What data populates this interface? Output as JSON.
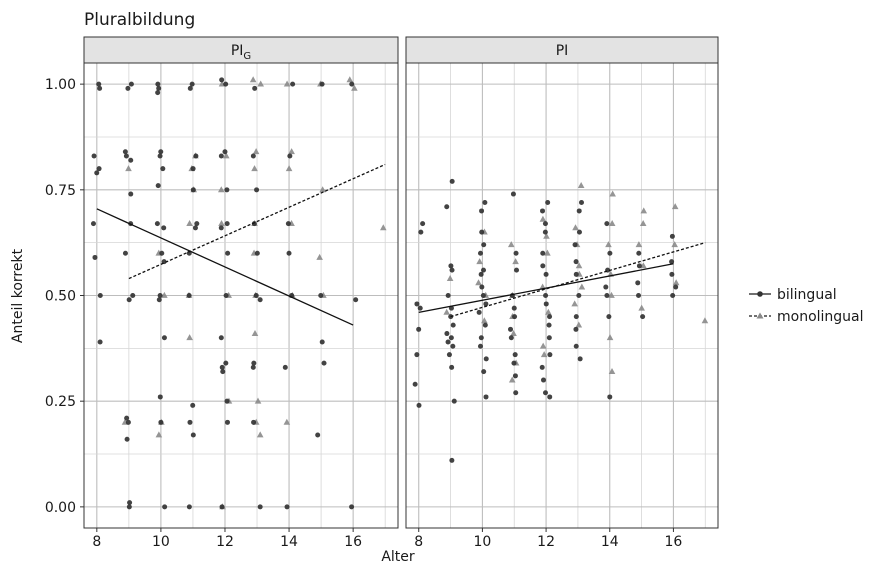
{
  "chart_data": {
    "type": "scatter",
    "title": "Pluralbildung",
    "xlabel": "Alter",
    "ylabel": "Anteil korrekt",
    "xlim": [
      7.6,
      17.4
    ],
    "ylim": [
      -0.05,
      1.05
    ],
    "xticks": [
      8,
      10,
      12,
      14,
      16
    ],
    "yticks": [
      0.0,
      0.25,
      0.5,
      0.75,
      1.0
    ],
    "ytick_labels": [
      "0.00",
      "0.25",
      "0.50",
      "0.75",
      "1.00"
    ],
    "grid": true,
    "legend_position": "right",
    "legend": [
      {
        "name": "bilingual",
        "line": "solid",
        "marker": "circle"
      },
      {
        "name": "monolingual",
        "line": "dashed",
        "marker": "triangle"
      }
    ],
    "panels": [
      {
        "strip": "PI",
        "strip_sub": "G",
        "fits": {
          "bilingual": {
            "x": [
              8,
              16
            ],
            "y": [
              0.705,
              0.43
            ]
          },
          "monolingual": {
            "x": [
              9,
              17
            ],
            "y": [
              0.54,
              0.81
            ]
          }
        },
        "bilingual": [
          [
            8,
            1.0
          ],
          [
            8,
            0.99
          ],
          [
            8,
            0.83
          ],
          [
            8,
            0.8
          ],
          [
            8,
            0.79
          ],
          [
            8,
            0.67
          ],
          [
            8,
            0.59
          ],
          [
            8,
            0.5
          ],
          [
            8,
            0.39
          ],
          [
            9,
            1.0
          ],
          [
            9,
            0.99
          ],
          [
            9,
            0.84
          ],
          [
            9,
            0.83
          ],
          [
            9,
            0.82
          ],
          [
            9,
            0.74
          ],
          [
            9,
            0.67
          ],
          [
            9,
            0.6
          ],
          [
            9,
            0.5
          ],
          [
            9,
            0.49
          ],
          [
            9,
            0.21
          ],
          [
            9,
            0.2
          ],
          [
            9,
            0.16
          ],
          [
            9,
            0.01
          ],
          [
            9,
            0.0
          ],
          [
            10,
            1.0
          ],
          [
            10,
            0.99
          ],
          [
            10,
            0.98
          ],
          [
            10,
            0.84
          ],
          [
            10,
            0.83
          ],
          [
            10,
            0.8
          ],
          [
            10,
            0.76
          ],
          [
            10,
            0.67
          ],
          [
            10,
            0.66
          ],
          [
            10,
            0.6
          ],
          [
            10,
            0.58
          ],
          [
            10,
            0.5
          ],
          [
            10,
            0.49
          ],
          [
            10,
            0.4
          ],
          [
            10,
            0.26
          ],
          [
            10,
            0.2
          ],
          [
            10,
            0.0
          ],
          [
            11,
            1.0
          ],
          [
            11,
            0.99
          ],
          [
            11,
            0.83
          ],
          [
            11,
            0.8
          ],
          [
            11,
            0.75
          ],
          [
            11,
            0.67
          ],
          [
            11,
            0.66
          ],
          [
            11,
            0.6
          ],
          [
            11,
            0.5
          ],
          [
            11,
            0.24
          ],
          [
            11,
            0.2
          ],
          [
            11,
            0.17
          ],
          [
            11,
            0.0
          ],
          [
            12,
            1.01
          ],
          [
            12,
            1.0
          ],
          [
            12,
            0.84
          ],
          [
            12,
            0.83
          ],
          [
            12,
            0.75
          ],
          [
            12,
            0.67
          ],
          [
            12,
            0.66
          ],
          [
            12,
            0.6
          ],
          [
            12,
            0.5
          ],
          [
            12,
            0.4
          ],
          [
            12,
            0.34
          ],
          [
            12,
            0.33
          ],
          [
            12,
            0.32
          ],
          [
            12,
            0.25
          ],
          [
            12,
            0.2
          ],
          [
            12,
            0.0
          ],
          [
            13,
            0.99
          ],
          [
            13,
            0.83
          ],
          [
            13,
            0.75
          ],
          [
            13,
            0.67
          ],
          [
            13,
            0.6
          ],
          [
            13,
            0.5
          ],
          [
            13,
            0.49
          ],
          [
            13,
            0.34
          ],
          [
            13,
            0.33
          ],
          [
            13,
            0.2
          ],
          [
            13,
            0.0
          ],
          [
            14,
            1.0
          ],
          [
            14,
            0.83
          ],
          [
            14,
            0.67
          ],
          [
            14,
            0.6
          ],
          [
            14,
            0.5
          ],
          [
            14,
            0.33
          ],
          [
            14,
            0.0
          ],
          [
            15,
            1.0
          ],
          [
            15,
            0.5
          ],
          [
            15,
            0.39
          ],
          [
            15,
            0.34
          ],
          [
            15,
            0.17
          ],
          [
            16,
            1.0
          ],
          [
            16,
            0.49
          ],
          [
            16,
            0.0
          ]
        ],
        "monolingual": [
          [
            9,
            0.8
          ],
          [
            9,
            0.2
          ],
          [
            10,
            0.6
          ],
          [
            10,
            0.5
          ],
          [
            10,
            0.2
          ],
          [
            10,
            0.17
          ],
          [
            11,
            0.83
          ],
          [
            11,
            0.8
          ],
          [
            11,
            0.75
          ],
          [
            11,
            0.67
          ],
          [
            11,
            0.5
          ],
          [
            11,
            0.4
          ],
          [
            12,
            1.0
          ],
          [
            12,
            0.83
          ],
          [
            12,
            0.75
          ],
          [
            12,
            0.67
          ],
          [
            12,
            0.5
          ],
          [
            12,
            0.25
          ],
          [
            12,
            0.0
          ],
          [
            13,
            1.01
          ],
          [
            13,
            1.0
          ],
          [
            13,
            0.84
          ],
          [
            13,
            0.8
          ],
          [
            13,
            0.67
          ],
          [
            13,
            0.6
          ],
          [
            13,
            0.5
          ],
          [
            13,
            0.41
          ],
          [
            13,
            0.25
          ],
          [
            13,
            0.2
          ],
          [
            13,
            0.17
          ],
          [
            14,
            1.0
          ],
          [
            14,
            0.84
          ],
          [
            14,
            0.8
          ],
          [
            14,
            0.67
          ],
          [
            14,
            0.5
          ],
          [
            14,
            0.2
          ],
          [
            15,
            1.0
          ],
          [
            15,
            0.75
          ],
          [
            15,
            0.59
          ],
          [
            15,
            0.5
          ],
          [
            16,
            1.01
          ],
          [
            16,
            0.99
          ],
          [
            17,
            0.66
          ]
        ]
      },
      {
        "strip": "PI",
        "strip_sub": "",
        "fits": {
          "bilingual": {
            "x": [
              8,
              16
            ],
            "y": [
              0.46,
              0.575
            ]
          },
          "monolingual": {
            "x": [
              9,
              17
            ],
            "y": [
              0.45,
              0.625
            ]
          }
        },
        "bilingual": [
          [
            8,
            0.67
          ],
          [
            8,
            0.65
          ],
          [
            8,
            0.48
          ],
          [
            8,
            0.47
          ],
          [
            8,
            0.42
          ],
          [
            8,
            0.36
          ],
          [
            8,
            0.29
          ],
          [
            8,
            0.24
          ],
          [
            9,
            0.77
          ],
          [
            9,
            0.71
          ],
          [
            9,
            0.57
          ],
          [
            9,
            0.56
          ],
          [
            9,
            0.5
          ],
          [
            9,
            0.47
          ],
          [
            9,
            0.45
          ],
          [
            9,
            0.43
          ],
          [
            9,
            0.41
          ],
          [
            9,
            0.4
          ],
          [
            9,
            0.39
          ],
          [
            9,
            0.38
          ],
          [
            9,
            0.36
          ],
          [
            9,
            0.33
          ],
          [
            9,
            0.25
          ],
          [
            9,
            0.11
          ],
          [
            10,
            0.72
          ],
          [
            10,
            0.7
          ],
          [
            10,
            0.65
          ],
          [
            10,
            0.62
          ],
          [
            10,
            0.6
          ],
          [
            10,
            0.56
          ],
          [
            10,
            0.55
          ],
          [
            10,
            0.52
          ],
          [
            10,
            0.5
          ],
          [
            10,
            0.48
          ],
          [
            10,
            0.46
          ],
          [
            10,
            0.43
          ],
          [
            10,
            0.4
          ],
          [
            10,
            0.38
          ],
          [
            10,
            0.35
          ],
          [
            10,
            0.32
          ],
          [
            10,
            0.26
          ],
          [
            11,
            0.74
          ],
          [
            11,
            0.6
          ],
          [
            11,
            0.56
          ],
          [
            11,
            0.5
          ],
          [
            11,
            0.47
          ],
          [
            11,
            0.45
          ],
          [
            11,
            0.42
          ],
          [
            11,
            0.4
          ],
          [
            11,
            0.36
          ],
          [
            11,
            0.34
          ],
          [
            11,
            0.31
          ],
          [
            11,
            0.27
          ],
          [
            12,
            0.72
          ],
          [
            12,
            0.7
          ],
          [
            12,
            0.67
          ],
          [
            12,
            0.65
          ],
          [
            12,
            0.6
          ],
          [
            12,
            0.57
          ],
          [
            12,
            0.55
          ],
          [
            12,
            0.5
          ],
          [
            12,
            0.48
          ],
          [
            12,
            0.45
          ],
          [
            12,
            0.43
          ],
          [
            12,
            0.4
          ],
          [
            12,
            0.36
          ],
          [
            12,
            0.33
          ],
          [
            12,
            0.3
          ],
          [
            12,
            0.27
          ],
          [
            12,
            0.26
          ],
          [
            13,
            0.72
          ],
          [
            13,
            0.7
          ],
          [
            13,
            0.65
          ],
          [
            13,
            0.62
          ],
          [
            13,
            0.58
          ],
          [
            13,
            0.55
          ],
          [
            13,
            0.5
          ],
          [
            13,
            0.45
          ],
          [
            13,
            0.42
          ],
          [
            13,
            0.38
          ],
          [
            13,
            0.35
          ],
          [
            14,
            0.67
          ],
          [
            14,
            0.6
          ],
          [
            14,
            0.56
          ],
          [
            14,
            0.52
          ],
          [
            14,
            0.5
          ],
          [
            14,
            0.45
          ],
          [
            14,
            0.26
          ],
          [
            15,
            0.6
          ],
          [
            15,
            0.57
          ],
          [
            15,
            0.53
          ],
          [
            15,
            0.5
          ],
          [
            15,
            0.45
          ],
          [
            16,
            0.64
          ],
          [
            16,
            0.58
          ],
          [
            16,
            0.55
          ],
          [
            16,
            0.52
          ],
          [
            16,
            0.5
          ]
        ],
        "monolingual": [
          [
            9,
            0.54
          ],
          [
            9,
            0.46
          ],
          [
            10,
            0.65
          ],
          [
            10,
            0.58
          ],
          [
            10,
            0.53
          ],
          [
            10,
            0.5
          ],
          [
            10,
            0.44
          ],
          [
            11,
            0.62
          ],
          [
            11,
            0.58
          ],
          [
            11,
            0.5
          ],
          [
            11,
            0.45
          ],
          [
            11,
            0.41
          ],
          [
            11,
            0.34
          ],
          [
            11,
            0.3
          ],
          [
            12,
            0.68
          ],
          [
            12,
            0.64
          ],
          [
            12,
            0.6
          ],
          [
            12,
            0.52
          ],
          [
            12,
            0.46
          ],
          [
            12,
            0.38
          ],
          [
            12,
            0.36
          ],
          [
            13,
            0.76
          ],
          [
            13,
            0.66
          ],
          [
            13,
            0.62
          ],
          [
            13,
            0.57
          ],
          [
            13,
            0.55
          ],
          [
            13,
            0.52
          ],
          [
            13,
            0.48
          ],
          [
            13,
            0.43
          ],
          [
            14,
            0.74
          ],
          [
            14,
            0.67
          ],
          [
            14,
            0.62
          ],
          [
            14,
            0.55
          ],
          [
            14,
            0.5
          ],
          [
            14,
            0.4
          ],
          [
            14,
            0.32
          ],
          [
            15,
            0.7
          ],
          [
            15,
            0.67
          ],
          [
            15,
            0.62
          ],
          [
            15,
            0.57
          ],
          [
            15,
            0.47
          ],
          [
            16,
            0.71
          ],
          [
            16,
            0.62
          ],
          [
            16,
            0.53
          ],
          [
            17,
            0.44
          ]
        ]
      }
    ]
  }
}
